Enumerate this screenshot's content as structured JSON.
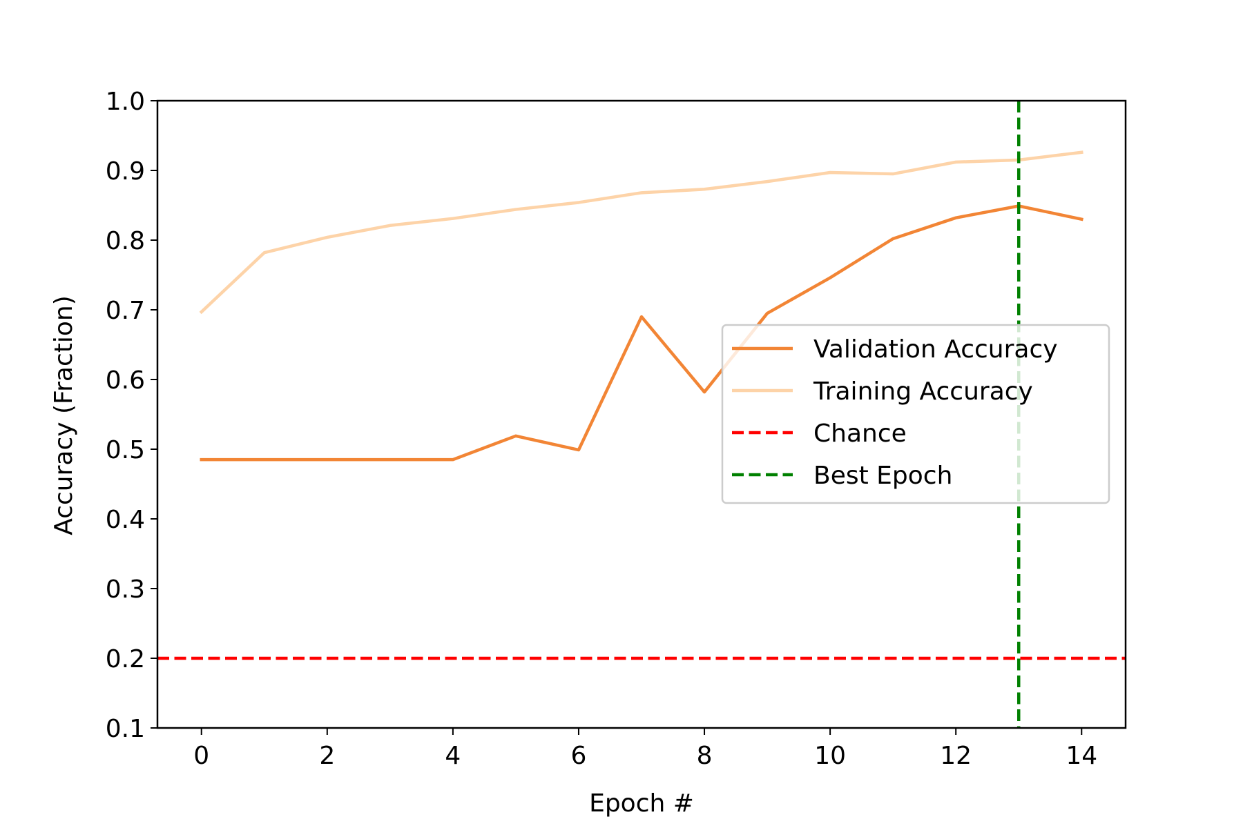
{
  "chart_data": {
    "type": "line",
    "title": "",
    "xlabel": "Epoch #",
    "ylabel": "Accuracy (Fraction)",
    "xlim": [
      -0.7,
      14.7
    ],
    "ylim": [
      0.1,
      1.0
    ],
    "xticks": [
      0,
      2,
      4,
      6,
      8,
      10,
      12,
      14
    ],
    "xtick_labels": [
      "0",
      "2",
      "4",
      "6",
      "8",
      "10",
      "12",
      "14"
    ],
    "yticks": [
      0.1,
      0.2,
      0.3,
      0.4,
      0.5,
      0.6,
      0.7,
      0.8,
      0.9,
      1.0
    ],
    "ytick_labels": [
      "0.1",
      "0.2",
      "0.3",
      "0.4",
      "0.5",
      "0.6",
      "0.7",
      "0.8",
      "0.9",
      "1.0"
    ],
    "grid": false,
    "legend_position": "center-right",
    "x": [
      0,
      1,
      2,
      3,
      4,
      5,
      6,
      7,
      8,
      9,
      10,
      11,
      12,
      13,
      14
    ],
    "series": [
      {
        "name": "Validation Accuracy",
        "color": "#f28535",
        "values": [
          0.485,
          0.485,
          0.485,
          0.485,
          0.485,
          0.519,
          0.499,
          0.69,
          0.582,
          0.695,
          0.746,
          0.802,
          0.832,
          0.849,
          0.83
        ]
      },
      {
        "name": "Training Accuracy",
        "color": "#fdd3a8",
        "values": [
          0.697,
          0.782,
          0.804,
          0.821,
          0.831,
          0.844,
          0.854,
          0.868,
          0.873,
          0.884,
          0.897,
          0.895,
          0.912,
          0.915,
          0.926
        ]
      }
    ],
    "reference_lines": [
      {
        "name": "Chance",
        "orientation": "horizontal",
        "value": 0.2,
        "color": "#ff0000",
        "style": "dashed"
      },
      {
        "name": "Best Epoch",
        "orientation": "vertical",
        "value": 13,
        "color": "#008000",
        "style": "dashed"
      }
    ]
  }
}
